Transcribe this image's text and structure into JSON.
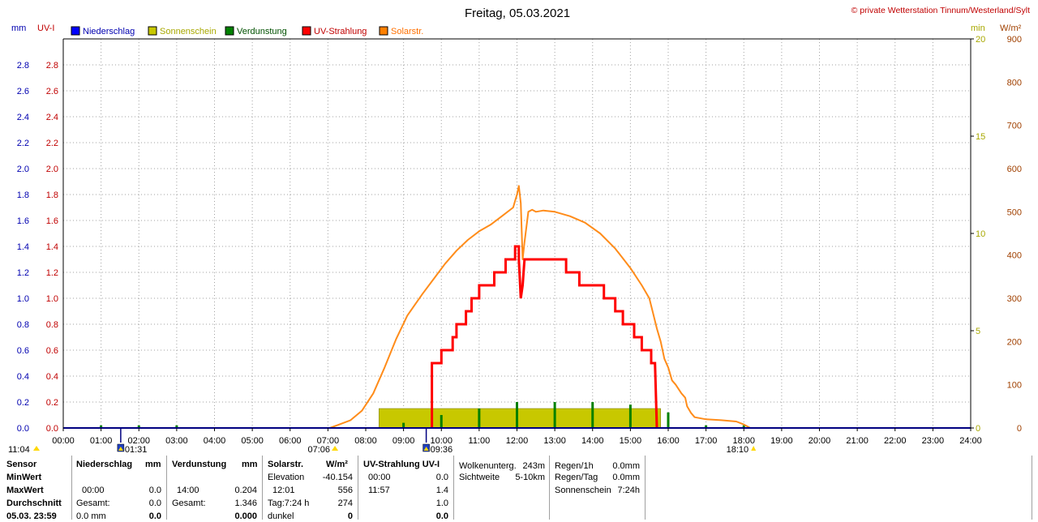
{
  "title": "Freitag, 05.03.2021",
  "copyright": "© private Wetterstation Tinnum/Westerland/Sylt",
  "left_units": {
    "mm": "mm",
    "uvi": "UV-I"
  },
  "right_units": {
    "min": "min",
    "wm2": "W/m²"
  },
  "legend": [
    {
      "label": "Niederschlag",
      "color": "#0000ff",
      "text_color": "#0000b0"
    },
    {
      "label": "Sonnenschein",
      "color": "#c8c800",
      "text_color": "#a8a800"
    },
    {
      "label": "Verdunstung",
      "color": "#008000",
      "text_color": "#005000"
    },
    {
      "label": "UV-Strahlung",
      "color": "#ff0000",
      "text_color": "#c00000"
    },
    {
      "label": "Solarstr.",
      "color": "#ff8000",
      "text_color": "#ff7000"
    }
  ],
  "colors": {
    "rain": "#0000ff",
    "sun": "#c8c800",
    "evap": "#008000",
    "uv": "#ff0000",
    "solar": "#ff8c1a",
    "grid": "#a0a0a0",
    "axis": "#000080"
  },
  "chart_data": {
    "type": "line",
    "x_ticks": [
      "00:00",
      "01:00",
      "02:00",
      "03:00",
      "04:00",
      "05:00",
      "06:00",
      "07:00",
      "08:00",
      "09:00",
      "10:00",
      "11:00",
      "12:00",
      "13:00",
      "14:00",
      "15:00",
      "16:00",
      "17:00",
      "18:00",
      "19:00",
      "20:00",
      "21:00",
      "22:00",
      "23:00",
      "24:00"
    ],
    "xlim": [
      0,
      24
    ],
    "axes": {
      "mm": {
        "ticks": [
          "0.0",
          "0.2",
          "0.4",
          "0.6",
          "0.8",
          "1.0",
          "1.2",
          "1.4",
          "1.6",
          "1.8",
          "2.0",
          "2.2",
          "2.4",
          "2.6",
          "2.8"
        ],
        "lim": [
          0,
          3.0
        ]
      },
      "uvi": {
        "ticks": [
          "0.0",
          "0.2",
          "0.4",
          "0.6",
          "0.8",
          "1.0",
          "1.2",
          "1.4",
          "1.6",
          "1.8",
          "2.0",
          "2.2",
          "2.4",
          "2.6",
          "2.8"
        ],
        "lim": [
          0,
          3.0
        ]
      },
      "min": {
        "ticks": [
          "0",
          "5",
          "10",
          "15",
          "20"
        ],
        "lim": [
          0,
          20
        ]
      },
      "wm2": {
        "ticks": [
          "0",
          "100",
          "200",
          "300",
          "400",
          "500",
          "600",
          "700",
          "800",
          "900"
        ],
        "lim": [
          0,
          900
        ]
      }
    },
    "sunshine_block": {
      "start": 8.35,
      "end": 15.8,
      "value_min": 1.0
    },
    "evaporation_spikes": [
      {
        "x": 1.0,
        "y": 0.02
      },
      {
        "x": 2.0,
        "y": 0.02
      },
      {
        "x": 3.0,
        "y": 0.02
      },
      {
        "x": 9.0,
        "y": 0.04
      },
      {
        "x": 10.0,
        "y": 0.1
      },
      {
        "x": 11.0,
        "y": 0.15
      },
      {
        "x": 12.0,
        "y": 0.2
      },
      {
        "x": 13.0,
        "y": 0.2
      },
      {
        "x": 14.0,
        "y": 0.2
      },
      {
        "x": 15.0,
        "y": 0.18
      },
      {
        "x": 16.0,
        "y": 0.12
      },
      {
        "x": 17.0,
        "y": 0.02
      },
      {
        "x": 18.0,
        "y": 0.02
      }
    ],
    "uv_series": {
      "name": "UV-Strahlung",
      "points": [
        [
          9.75,
          0.0
        ],
        [
          9.75,
          0.5
        ],
        [
          10.0,
          0.5
        ],
        [
          10.0,
          0.6
        ],
        [
          10.3,
          0.6
        ],
        [
          10.3,
          0.7
        ],
        [
          10.4,
          0.7
        ],
        [
          10.4,
          0.8
        ],
        [
          10.65,
          0.8
        ],
        [
          10.65,
          0.9
        ],
        [
          10.8,
          0.9
        ],
        [
          10.8,
          1.0
        ],
        [
          11.0,
          1.0
        ],
        [
          11.0,
          1.1
        ],
        [
          11.4,
          1.1
        ],
        [
          11.4,
          1.2
        ],
        [
          11.7,
          1.2
        ],
        [
          11.7,
          1.3
        ],
        [
          11.95,
          1.3
        ],
        [
          11.95,
          1.4
        ],
        [
          12.05,
          1.4
        ],
        [
          12.05,
          1.3
        ],
        [
          12.1,
          1.0
        ],
        [
          12.15,
          1.1
        ],
        [
          12.2,
          1.3
        ],
        [
          13.3,
          1.3
        ],
        [
          13.3,
          1.2
        ],
        [
          13.65,
          1.2
        ],
        [
          13.65,
          1.1
        ],
        [
          14.3,
          1.1
        ],
        [
          14.3,
          1.0
        ],
        [
          14.6,
          1.0
        ],
        [
          14.6,
          0.9
        ],
        [
          14.8,
          0.9
        ],
        [
          14.8,
          0.8
        ],
        [
          15.1,
          0.8
        ],
        [
          15.1,
          0.7
        ],
        [
          15.3,
          0.7
        ],
        [
          15.3,
          0.6
        ],
        [
          15.55,
          0.6
        ],
        [
          15.55,
          0.5
        ],
        [
          15.65,
          0.5
        ],
        [
          15.7,
          0.0
        ]
      ]
    },
    "solar_series": {
      "name": "Solarstr.",
      "points": [
        [
          7.05,
          0
        ],
        [
          7.3,
          8
        ],
        [
          7.6,
          18
        ],
        [
          7.9,
          40
        ],
        [
          8.2,
          80
        ],
        [
          8.5,
          140
        ],
        [
          8.8,
          205
        ],
        [
          9.1,
          260
        ],
        [
          9.5,
          310
        ],
        [
          9.8,
          345
        ],
        [
          10.1,
          380
        ],
        [
          10.4,
          410
        ],
        [
          10.7,
          435
        ],
        [
          11.0,
          455
        ],
        [
          11.3,
          470
        ],
        [
          11.6,
          490
        ],
        [
          11.9,
          510
        ],
        [
          12.0,
          540
        ],
        [
          12.05,
          560
        ],
        [
          12.1,
          520
        ],
        [
          12.15,
          390
        ],
        [
          12.2,
          430
        ],
        [
          12.3,
          500
        ],
        [
          12.4,
          505
        ],
        [
          12.5,
          500
        ],
        [
          12.7,
          503
        ],
        [
          13.0,
          500
        ],
        [
          13.4,
          490
        ],
        [
          13.8,
          475
        ],
        [
          14.2,
          450
        ],
        [
          14.6,
          415
        ],
        [
          15.0,
          370
        ],
        [
          15.3,
          330
        ],
        [
          15.5,
          300
        ],
        [
          15.6,
          265
        ],
        [
          15.7,
          230
        ],
        [
          15.8,
          200
        ],
        [
          15.9,
          160
        ],
        [
          16.0,
          140
        ],
        [
          16.1,
          110
        ],
        [
          16.2,
          100
        ],
        [
          16.35,
          80
        ],
        [
          16.45,
          70
        ],
        [
          16.5,
          50
        ],
        [
          16.6,
          35
        ],
        [
          16.7,
          25
        ],
        [
          17.0,
          20
        ],
        [
          17.4,
          18
        ],
        [
          17.8,
          15
        ],
        [
          18.0,
          8
        ],
        [
          18.17,
          0
        ]
      ]
    }
  },
  "markers_below": [
    {
      "label": "11:04",
      "x": 0.0
    },
    {
      "label": "01:31",
      "x": 1.52
    },
    {
      "label": "07:06",
      "x": 7.1
    },
    {
      "label": "09:36",
      "x": 9.6
    },
    {
      "label": "18:10",
      "x": 18.17
    }
  ],
  "stats": {
    "sensor": {
      "h0": "Sensor",
      "r1": "MinWert",
      "r2": "MaxWert",
      "r3": "Durchschnitt",
      "r4": "05.03. 23:59"
    },
    "rain": {
      "head": "Niederschlag",
      "unit": "mm",
      "min_time": "",
      "min_val": "",
      "max_time": "00:00",
      "max_val": "0.0",
      "avg_label": "Gesamt:",
      "avg_val": "0.0",
      "last_val": "0.0 mm",
      "last_big": "0.0"
    },
    "evap": {
      "head": "Verdunstung",
      "unit": "mm",
      "max_time": "14:00",
      "max_val": "0.204",
      "avg_label": "Gesamt:",
      "avg_val": "1.346",
      "last_big": "0.000"
    },
    "solar": {
      "head": "Solarstr.",
      "unit": "W/m²",
      "r1_label": "Elevation",
      "r1_val": "-40.154",
      "r2_label": "12:01",
      "r2_val": "556",
      "r3_label": "Tag:7:24 h",
      "r3_val": "274",
      "r4_label": "dunkel",
      "r4_val": "0"
    },
    "uv": {
      "head": "UV-Strahlung UV-I",
      "r1_label": "00:00",
      "r1_val": "0.0",
      "r2_label": "11:57",
      "r2_val": "1.4",
      "r3_val": "1.0",
      "r4_val": "0.0"
    },
    "extra1": {
      "l1": "Wolkenunterg.",
      "v1": "243m",
      "l2": "Sichtweite",
      "v2": "5-10km"
    },
    "extra2": {
      "l1": "Regen/1h",
      "v1": "0.0mm",
      "l2": "Regen/Tag",
      "v2": "0.0mm",
      "l3": "Sonnenschein",
      "v3": "7:24h"
    }
  }
}
